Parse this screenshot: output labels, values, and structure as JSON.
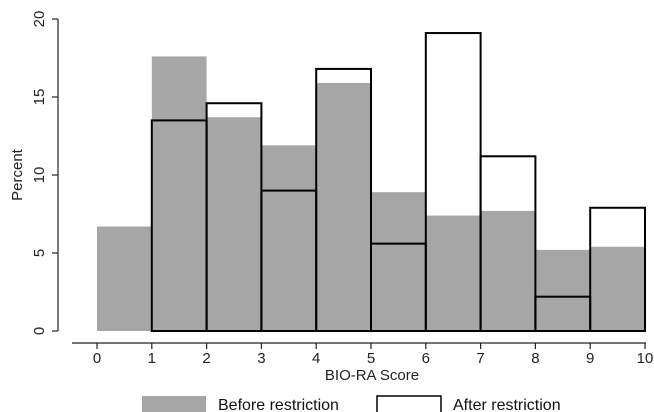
{
  "chart_data": {
    "type": "bar",
    "xlabel": "BIO-RA Score",
    "ylabel": "Percent",
    "xlim": [
      0,
      10
    ],
    "ylim": [
      0,
      20
    ],
    "x_ticks": [
      "0",
      "1",
      "2",
      "3",
      "4",
      "5",
      "6",
      "7",
      "8",
      "9",
      "10"
    ],
    "y_ticks": [
      "0",
      "5",
      "10",
      "15",
      "20"
    ],
    "bins": [
      [
        0,
        1
      ],
      [
        1,
        2
      ],
      [
        2,
        3
      ],
      [
        3,
        4
      ],
      [
        4,
        5
      ],
      [
        5,
        6
      ],
      [
        6,
        7
      ],
      [
        7,
        8
      ],
      [
        8,
        9
      ],
      [
        9,
        10
      ]
    ],
    "series": [
      {
        "name": "Before restriction",
        "fill": "#a6a6a6",
        "style": "filled",
        "values": [
          6.7,
          17.6,
          13.7,
          11.9,
          15.9,
          8.9,
          7.4,
          7.7,
          5.2,
          5.4
        ]
      },
      {
        "name": "After restriction",
        "fill": "none",
        "style": "outline",
        "values": [
          0,
          13.5,
          14.6,
          9.0,
          16.8,
          5.6,
          19.1,
          11.2,
          2.2,
          7.9
        ]
      }
    ],
    "legend_position": "bottom",
    "grid": false
  }
}
